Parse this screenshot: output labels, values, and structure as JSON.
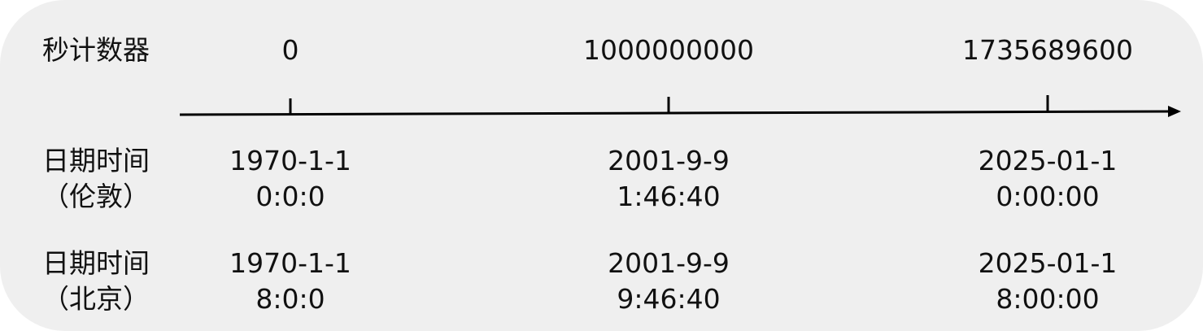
{
  "row_labels": {
    "seconds_counter": "秒计数器",
    "datetime_london_line1": "日期时间",
    "datetime_london_line2": "（伦敦）",
    "datetime_beijing_line1": "日期时间",
    "datetime_beijing_line2": "（北京）"
  },
  "points": [
    {
      "seconds": "0",
      "london_date": "1970-1-1",
      "london_time": "0:0:0",
      "beijing_date": "1970-1-1",
      "beijing_time": "8:0:0"
    },
    {
      "seconds": "1000000000",
      "london_date": "2001-9-9",
      "london_time": "1:46:40",
      "beijing_date": "2001-9-9",
      "beijing_time": "9:46:40"
    },
    {
      "seconds": "1735689600",
      "london_date": "2025-01-1",
      "london_time": "0:00:00",
      "beijing_date": "2025-01-1",
      "beijing_time": "8:00:00"
    }
  ],
  "colors": {
    "panel": "#efefef",
    "text": "#111111",
    "axis": "#000000"
  }
}
